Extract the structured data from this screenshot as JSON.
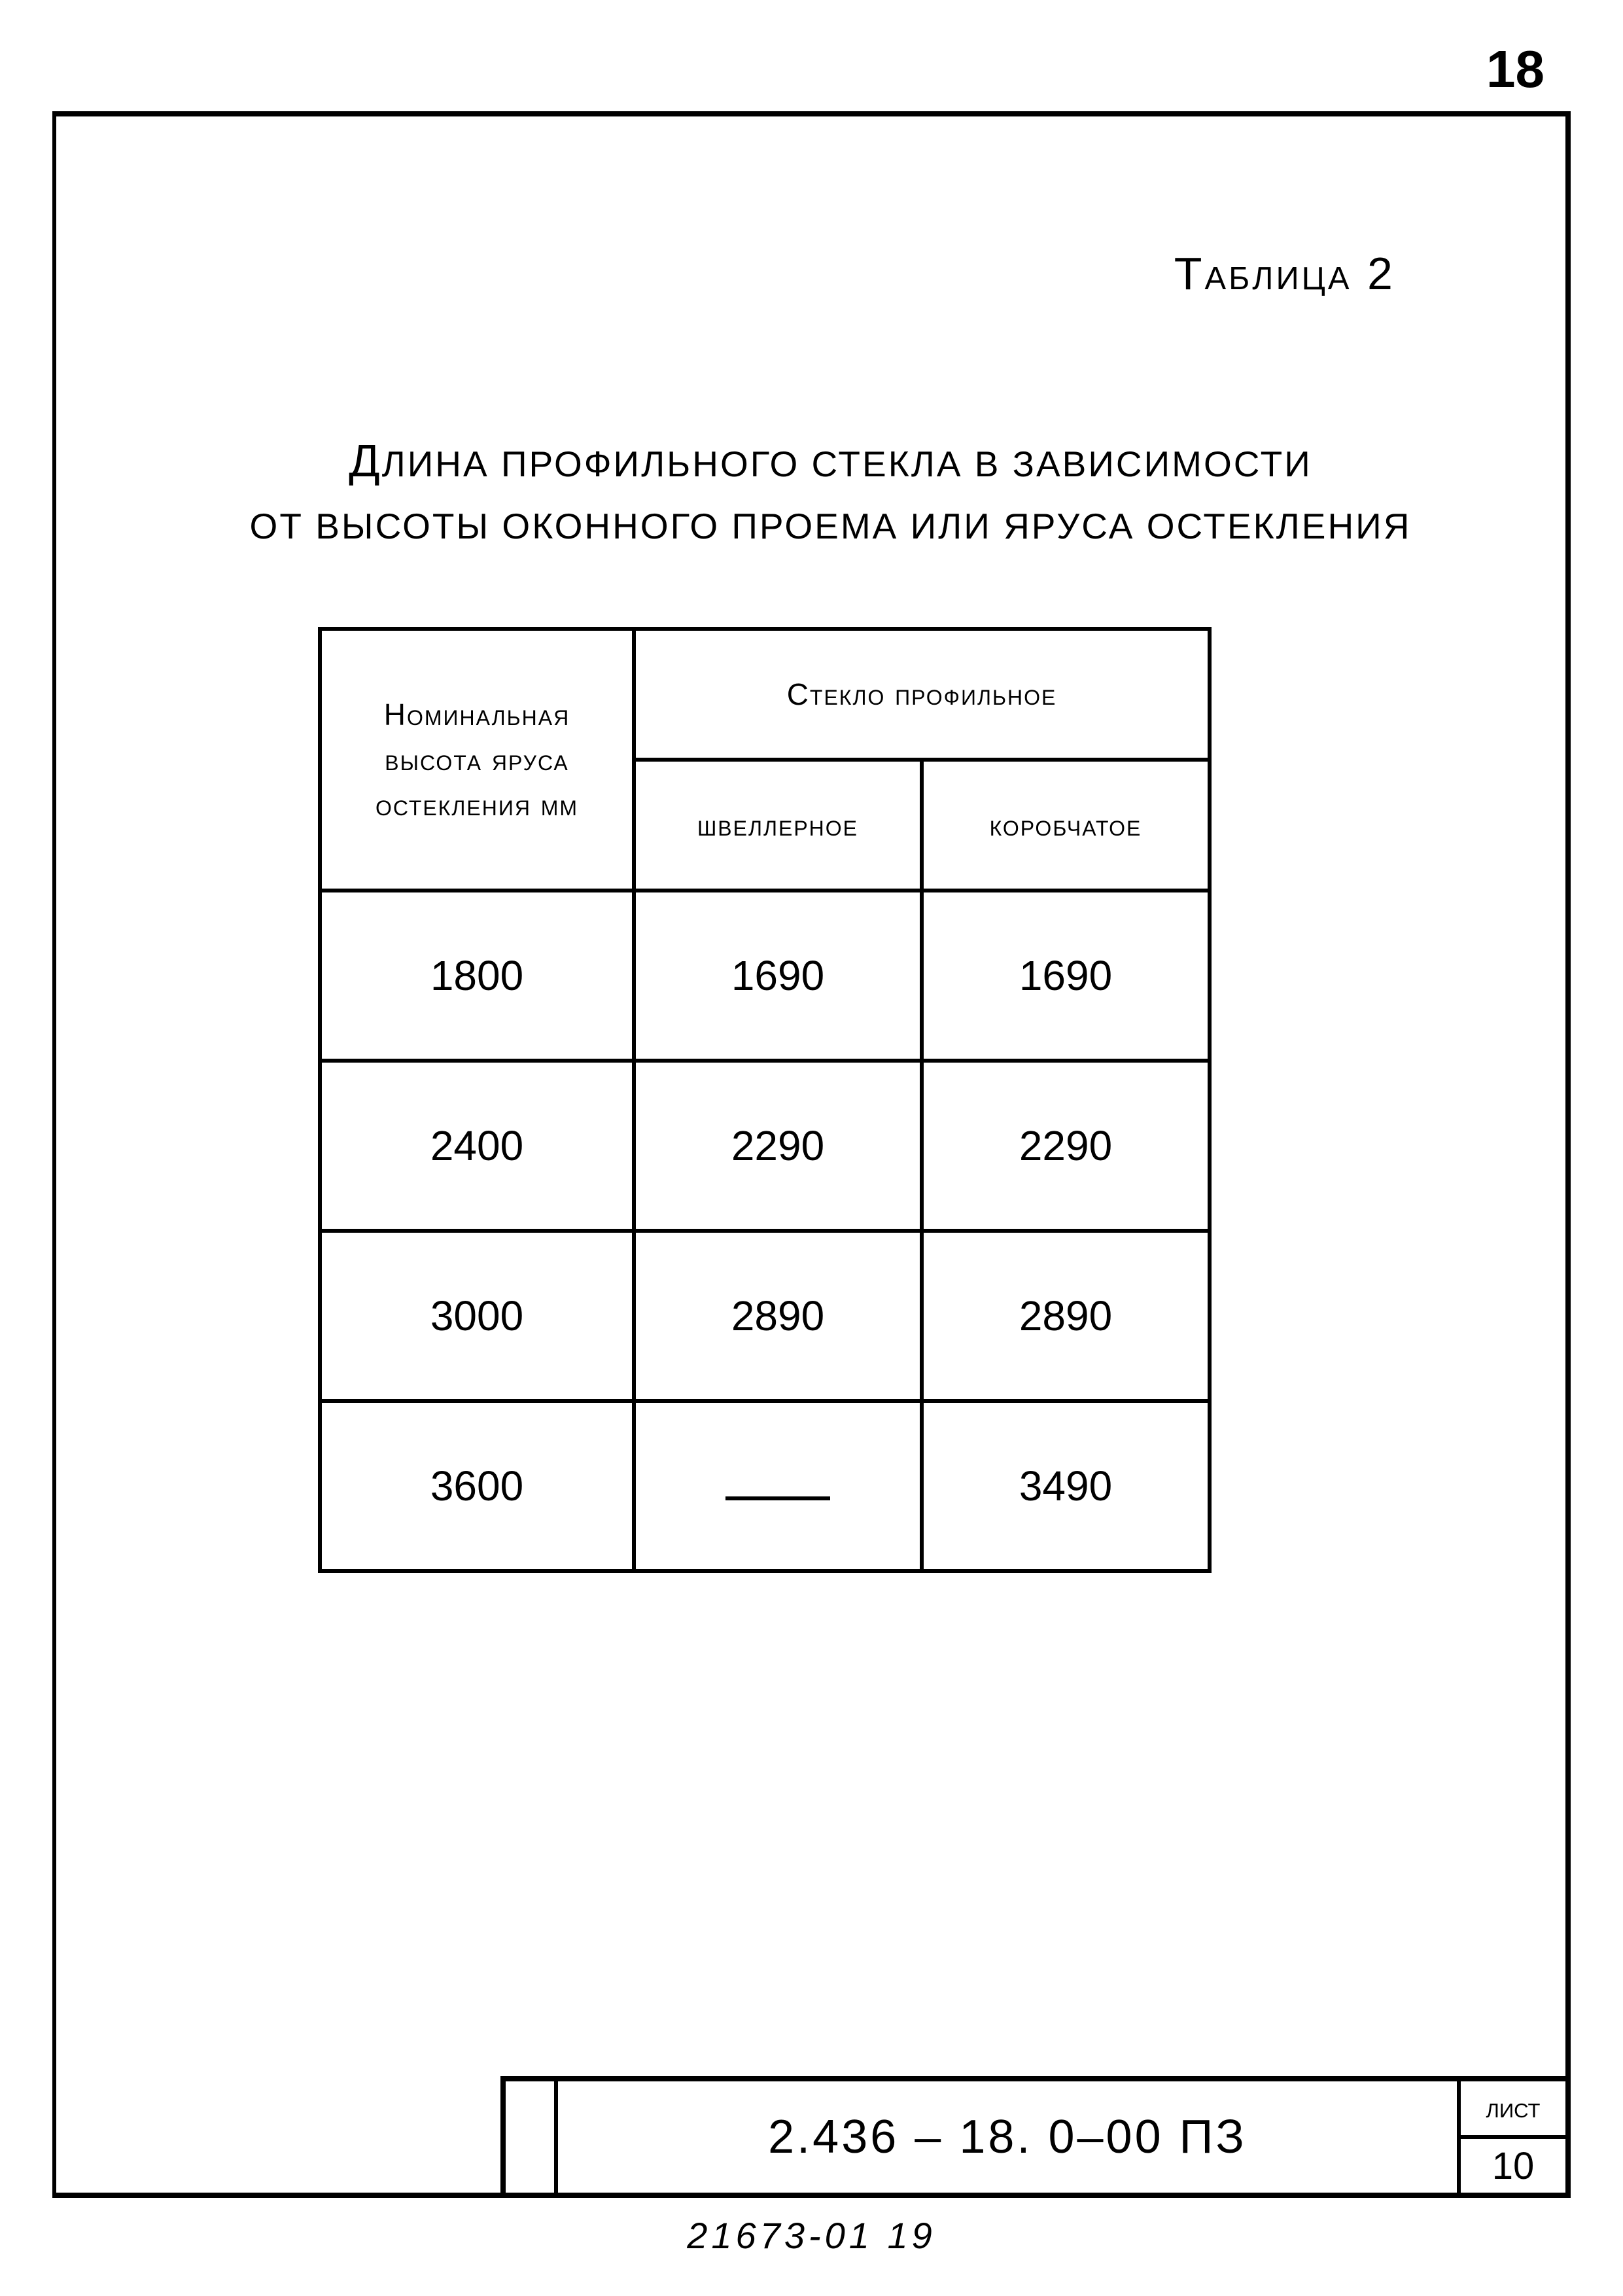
{
  "page_number_top": "18",
  "table_label": "Таблица 2",
  "caption_line1_first": "Д",
  "caption_line1_rest": "лина профильного стекла в зависимости",
  "caption_line2": "от высоты оконного проема или яруса остекления",
  "table": {
    "col_headers": {
      "height": "Номинальная высота яруса остекления мм",
      "glass_group": "Стекло профильное",
      "sub1": "швеллерное",
      "sub2": "коробчатое"
    },
    "rows": [
      {
        "h": "1800",
        "v1": "1690",
        "v2": "1690"
      },
      {
        "h": "2400",
        "v1": "2290",
        "v2": "2290"
      },
      {
        "h": "3000",
        "v1": "2890",
        "v2": "2890"
      },
      {
        "h": "3600",
        "v1": "—",
        "v2": "3490"
      }
    ]
  },
  "title_block": {
    "doc_number": "2.436 – 18. 0–00 ПЗ",
    "sheet_label": "лист",
    "sheet_number": "10"
  },
  "footer_code": "21673-01   19"
}
